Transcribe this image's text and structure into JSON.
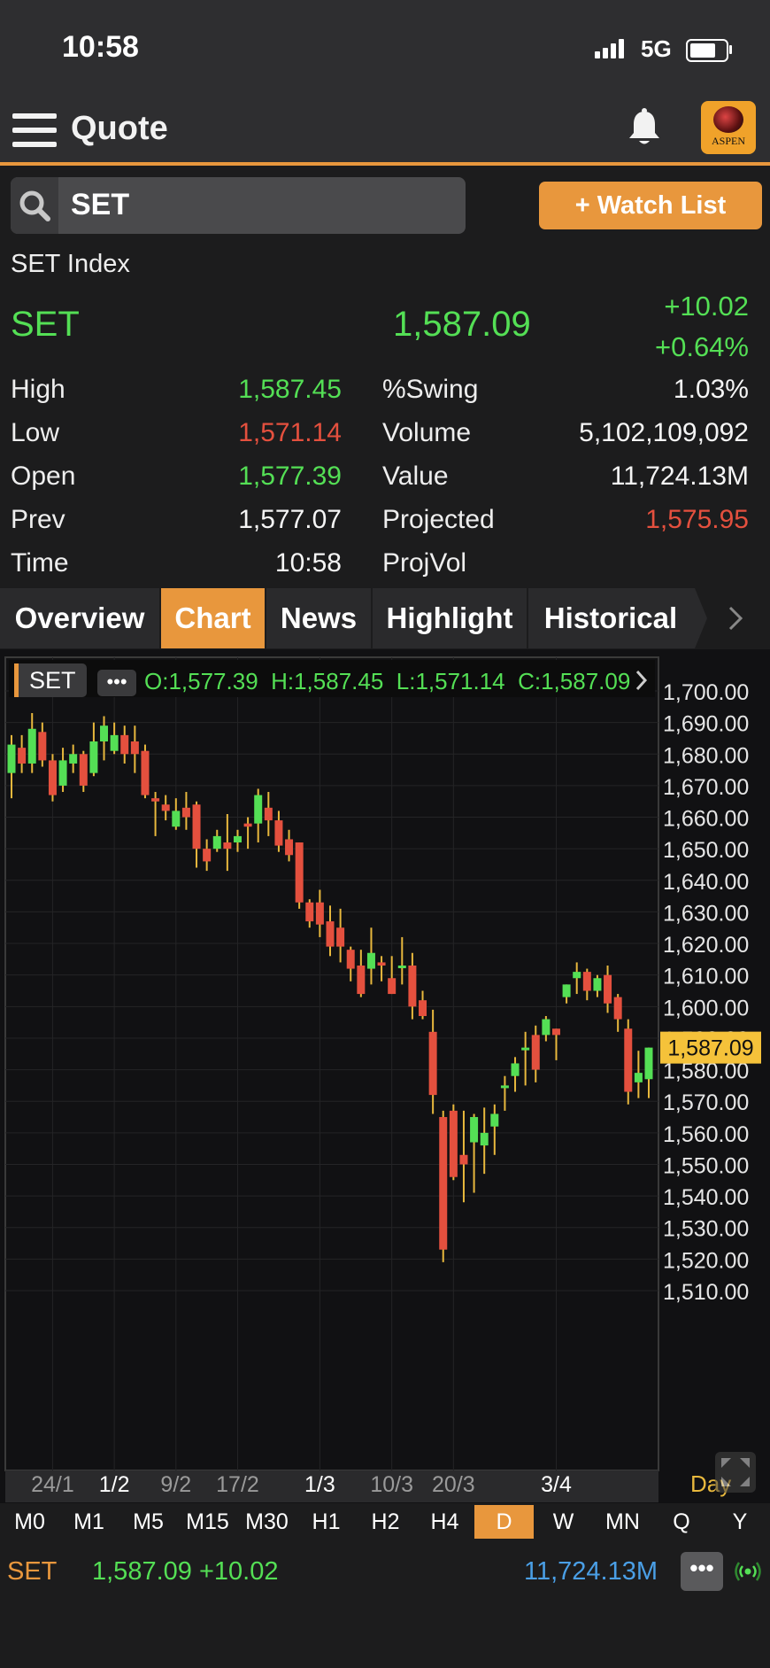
{
  "status_bar": {
    "time": "10:58",
    "network": "5G"
  },
  "header": {
    "title": "Quote",
    "logo_text": "ASPEN"
  },
  "search": {
    "value": "SET",
    "watch_list_label": "+ Watch List"
  },
  "quote": {
    "index_name": "SET Index",
    "symbol": "SET",
    "last": "1,587.09",
    "change": "+10.02",
    "change_pct": "+0.64%",
    "left_stats": [
      {
        "label": "High",
        "value": "1,587.45",
        "color": "green"
      },
      {
        "label": "Low",
        "value": "1,571.14",
        "color": "red"
      },
      {
        "label": "Open",
        "value": "1,577.39",
        "color": "green"
      },
      {
        "label": "Prev",
        "value": "1,577.07",
        "color": "white"
      },
      {
        "label": "Time",
        "value": "10:58",
        "color": "white"
      }
    ],
    "right_stats": [
      {
        "label": "%Swing",
        "value": "1.03%",
        "color": "white"
      },
      {
        "label": "Volume",
        "value": "5,102,109,092",
        "color": "white"
      },
      {
        "label": "Value",
        "value": "11,724.13M",
        "color": "white"
      },
      {
        "label": "Projected",
        "value": "1,575.95",
        "color": "red"
      },
      {
        "label": "ProjVol",
        "value": "",
        "color": "white"
      }
    ]
  },
  "tabs": [
    "Overview",
    "Chart",
    "News",
    "Highlight",
    "Historical"
  ],
  "active_tab": "Chart",
  "chart_data": {
    "type": "candlestick",
    "symbol_label": "SET",
    "ohlc_label": "O:1,577.39  H:1,587.45  L:1,571.14  C:1,587.09",
    "last_price_label": "1,587.09",
    "interval_label": "Day",
    "ylim": [
      1505,
      1705
    ],
    "y_ticks": [
      "1,700.00",
      "1,690.00",
      "1,680.00",
      "1,670.00",
      "1,660.00",
      "1,650.00",
      "1,640.00",
      "1,630.00",
      "1,620.00",
      "1,610.00",
      "1,600.00",
      "1,590.00",
      "1,580.00",
      "1,570.00",
      "1,560.00",
      "1,550.00",
      "1,540.00",
      "1,530.00",
      "1,520.00",
      "1,510.00"
    ],
    "y_tick_values": [
      1700,
      1690,
      1680,
      1670,
      1660,
      1650,
      1640,
      1630,
      1620,
      1610,
      1600,
      1590,
      1580,
      1570,
      1560,
      1550,
      1540,
      1530,
      1520,
      1510
    ],
    "x_labels": [
      {
        "label": "24/1",
        "index": 4
      },
      {
        "label": "1/2",
        "index": 10
      },
      {
        "label": "9/2",
        "index": 16
      },
      {
        "label": "17/2",
        "index": 22
      },
      {
        "label": "1/3",
        "index": 30
      },
      {
        "label": "10/3",
        "index": 37
      },
      {
        "label": "20/3",
        "index": 43
      },
      {
        "label": "3/4",
        "index": 53
      }
    ],
    "candles": [
      {
        "o": 1674,
        "h": 1686,
        "l": 1666,
        "c": 1683
      },
      {
        "o": 1682,
        "h": 1686,
        "l": 1674,
        "c": 1677
      },
      {
        "o": 1677,
        "h": 1693,
        "l": 1674,
        "c": 1688
      },
      {
        "o": 1687,
        "h": 1690,
        "l": 1676,
        "c": 1678
      },
      {
        "o": 1678,
        "h": 1680,
        "l": 1665,
        "c": 1667
      },
      {
        "o": 1670,
        "h": 1682,
        "l": 1668,
        "c": 1678
      },
      {
        "o": 1677,
        "h": 1683,
        "l": 1674,
        "c": 1680
      },
      {
        "o": 1680,
        "h": 1681,
        "l": 1668,
        "c": 1670
      },
      {
        "o": 1674,
        "h": 1690,
        "l": 1673,
        "c": 1684
      },
      {
        "o": 1684,
        "h": 1692,
        "l": 1678,
        "c": 1689
      },
      {
        "o": 1681,
        "h": 1690,
        "l": 1680,
        "c": 1686
      },
      {
        "o": 1686,
        "h": 1689,
        "l": 1677,
        "c": 1680
      },
      {
        "o": 1684,
        "h": 1689,
        "l": 1674,
        "c": 1680
      },
      {
        "o": 1681,
        "h": 1683,
        "l": 1666,
        "c": 1667
      },
      {
        "o": 1666,
        "h": 1668,
        "l": 1654,
        "c": 1665
      },
      {
        "o": 1664,
        "h": 1667,
        "l": 1659,
        "c": 1662
      },
      {
        "o": 1657,
        "h": 1666,
        "l": 1656,
        "c": 1662
      },
      {
        "o": 1663,
        "h": 1668,
        "l": 1656,
        "c": 1660
      },
      {
        "o": 1664,
        "h": 1665,
        "l": 1644,
        "c": 1650
      },
      {
        "o": 1650,
        "h": 1653,
        "l": 1643,
        "c": 1646
      },
      {
        "o": 1650,
        "h": 1656,
        "l": 1649,
        "c": 1654
      },
      {
        "o": 1652,
        "h": 1661,
        "l": 1643,
        "c": 1650
      },
      {
        "o": 1652,
        "h": 1656,
        "l": 1649,
        "c": 1654
      },
      {
        "o": 1658,
        "h": 1660,
        "l": 1650,
        "c": 1657
      },
      {
        "o": 1658,
        "h": 1669,
        "l": 1652,
        "c": 1667
      },
      {
        "o": 1663,
        "h": 1668,
        "l": 1654,
        "c": 1659
      },
      {
        "o": 1659,
        "h": 1662,
        "l": 1649,
        "c": 1651
      },
      {
        "o": 1653,
        "h": 1656,
        "l": 1646,
        "c": 1648
      },
      {
        "o": 1652,
        "h": 1652,
        "l": 1631,
        "c": 1633
      },
      {
        "o": 1633,
        "h": 1634,
        "l": 1625,
        "c": 1627
      },
      {
        "o": 1633,
        "h": 1637,
        "l": 1622,
        "c": 1626
      },
      {
        "o": 1627,
        "h": 1632,
        "l": 1616,
        "c": 1619
      },
      {
        "o": 1625,
        "h": 1631,
        "l": 1614,
        "c": 1619
      },
      {
        "o": 1618,
        "h": 1619,
        "l": 1608,
        "c": 1612
      },
      {
        "o": 1613,
        "h": 1618,
        "l": 1603,
        "c": 1604
      },
      {
        "o": 1612,
        "h": 1625,
        "l": 1607,
        "c": 1617
      },
      {
        "o": 1614,
        "h": 1616,
        "l": 1608,
        "c": 1613
      },
      {
        "o": 1609,
        "h": 1616,
        "l": 1604,
        "c": 1604
      },
      {
        "o": 1613,
        "h": 1622,
        "l": 1607,
        "c": 1613
      },
      {
        "o": 1613,
        "h": 1617,
        "l": 1596,
        "c": 1600
      },
      {
        "o": 1602,
        "h": 1605,
        "l": 1596,
        "c": 1597
      },
      {
        "o": 1592,
        "h": 1599,
        "l": 1566,
        "c": 1572
      },
      {
        "o": 1565,
        "h": 1567,
        "l": 1519,
        "c": 1523
      },
      {
        "o": 1567,
        "h": 1569,
        "l": 1545,
        "c": 1546
      },
      {
        "o": 1553,
        "h": 1567,
        "l": 1538,
        "c": 1550
      },
      {
        "o": 1557,
        "h": 1566,
        "l": 1541,
        "c": 1565
      },
      {
        "o": 1556,
        "h": 1568,
        "l": 1547,
        "c": 1560
      },
      {
        "o": 1562,
        "h": 1569,
        "l": 1553,
        "c": 1566
      },
      {
        "o": 1575,
        "h": 1578,
        "l": 1567,
        "c": 1575
      },
      {
        "o": 1578,
        "h": 1584,
        "l": 1573,
        "c": 1582
      },
      {
        "o": 1587,
        "h": 1592,
        "l": 1575,
        "c": 1587
      },
      {
        "o": 1591,
        "h": 1594,
        "l": 1576,
        "c": 1580
      },
      {
        "o": 1591,
        "h": 1597,
        "l": 1589,
        "c": 1596
      },
      {
        "o": 1593,
        "h": 1593,
        "l": 1583,
        "c": 1591
      },
      {
        "o": 1603,
        "h": 1607,
        "l": 1601,
        "c": 1607
      },
      {
        "o": 1609,
        "h": 1614,
        "l": 1604,
        "c": 1611
      },
      {
        "o": 1611,
        "h": 1612,
        "l": 1602,
        "c": 1605
      },
      {
        "o": 1605,
        "h": 1610,
        "l": 1603,
        "c": 1609
      },
      {
        "o": 1610,
        "h": 1613,
        "l": 1598,
        "c": 1601
      },
      {
        "o": 1603,
        "h": 1604,
        "l": 1592,
        "c": 1596
      },
      {
        "o": 1593,
        "h": 1596,
        "l": 1569,
        "c": 1573
      },
      {
        "o": 1576,
        "h": 1586,
        "l": 1571,
        "c": 1579
      },
      {
        "o": 1577,
        "h": 1587,
        "l": 1571,
        "c": 1587
      }
    ]
  },
  "timeframes": [
    "M0",
    "M1",
    "M5",
    "M15",
    "M30",
    "H1",
    "H2",
    "H4",
    "D",
    "W",
    "MN",
    "Q",
    "Y"
  ],
  "active_timeframe": "D",
  "footer": {
    "symbol": "SET",
    "price_change": "1,587.09 +10.02",
    "value": "11,724.13M",
    "more": "•••"
  },
  "colors": {
    "accent": "#e8973d",
    "up": "#54df55",
    "down": "#e4503e",
    "value_blue": "#4a9fe6",
    "bg": "#1c1c1d"
  }
}
